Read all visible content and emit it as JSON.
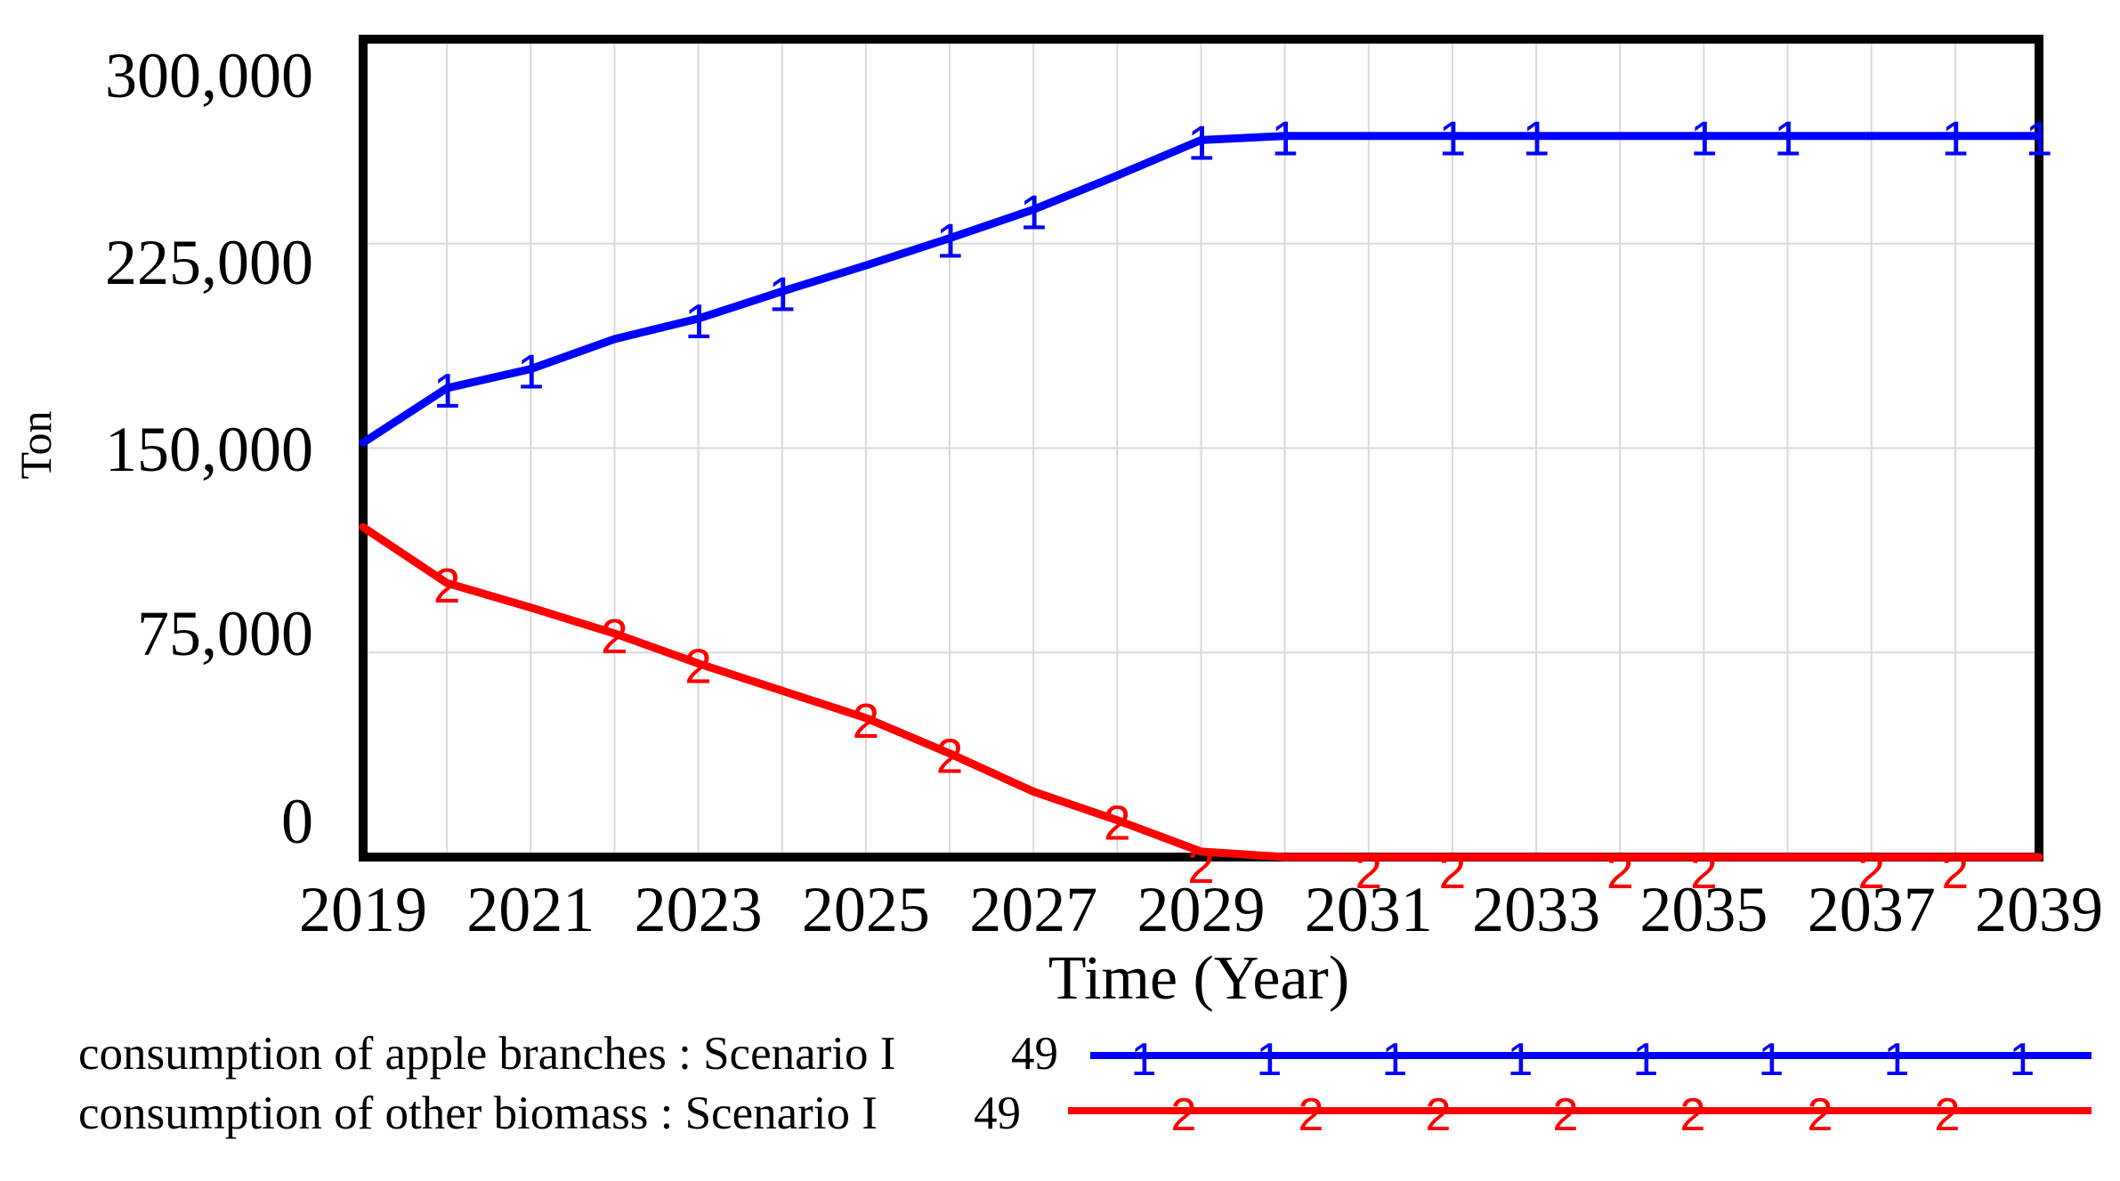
{
  "chart_data": {
    "type": "line",
    "title": "",
    "xlabel": "Time (Year)",
    "ylabel": "Ton",
    "xlim": [
      2019,
      2039
    ],
    "ylim": [
      0,
      300000
    ],
    "grid": true,
    "x": [
      2019,
      2020,
      2021,
      2022,
      2023,
      2024,
      2025,
      2026,
      2027,
      2028,
      2029,
      2030,
      2031,
      2032,
      2033,
      2034,
      2035,
      2036,
      2037,
      2038,
      2039
    ],
    "x_tick_labels": [
      "2019",
      "2021",
      "2023",
      "2025",
      "2027",
      "2029",
      "2031",
      "2033",
      "2035",
      "2037",
      "2039"
    ],
    "y_tick_values": [
      300000,
      225000,
      150000,
      75000,
      0
    ],
    "y_tick_labels": [
      "300,000",
      "225,000",
      "150,000",
      "75,000",
      "0"
    ],
    "gridline_years": [
      2020,
      2021,
      2022,
      2023,
      2024,
      2025,
      2026,
      2027,
      2028,
      2029,
      2030,
      2031,
      2032,
      2033,
      2034,
      2035,
      2036,
      2037,
      2038
    ],
    "gridline_values": [
      75000,
      150000,
      225000
    ],
    "series": [
      {
        "name": "consumption of apple branches : Scenario I",
        "legend_value": "49",
        "marker": "1",
        "color": "#0000ff",
        "values": [
          152000,
          172000,
          179000,
          190000,
          197500,
          207500,
          217000,
          227000,
          237500,
          250000,
          263000,
          264500,
          264500,
          264500,
          264500,
          264500,
          264500,
          264500,
          264500,
          264500,
          264500
        ],
        "marker_years": [
          2020,
          2021,
          2023,
          2024,
          2026,
          2027,
          2029,
          2030,
          2032,
          2033,
          2035,
          2036,
          2038,
          2039
        ]
      },
      {
        "name": "consumption of other biomass : Scenario I",
        "legend_value": "49",
        "marker": "2",
        "color": "#ff0000",
        "values": [
          121000,
          100500,
          91500,
          82000,
          71000,
          61000,
          51000,
          38000,
          24000,
          13500,
          2000,
          0,
          0,
          0,
          0,
          0,
          0,
          0,
          0,
          0,
          0
        ],
        "marker_years": [
          2020,
          2022,
          2023,
          2025,
          2026,
          2028,
          2029,
          2031,
          2032,
          2034,
          2035,
          2037,
          2038
        ]
      }
    ]
  },
  "colors": {
    "frame": "#000000",
    "gridline": "#d9d9d9",
    "text": "#000000",
    "background": "#ffffff"
  }
}
